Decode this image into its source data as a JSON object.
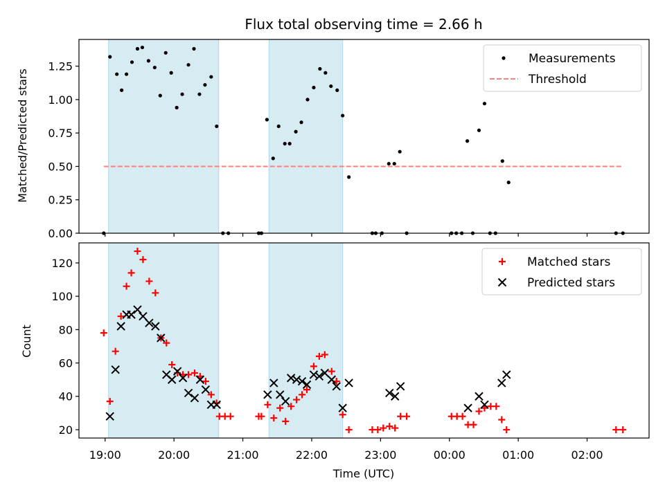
{
  "chart_data": [
    {
      "type": "scatter",
      "title": "Flux total observing time = 2.66 h",
      "ylabel": "Matched/Predicted stars",
      "xlabel": "",
      "ylim": [
        0,
        1.45
      ],
      "x_unit": "hours since 19:00 UTC",
      "y_ticks": [
        0.0,
        0.25,
        0.5,
        0.75,
        1.0,
        1.25
      ],
      "y_tick_labels": [
        "0.00",
        "0.25",
        "0.50",
        "0.75",
        "1.00",
        "1.25"
      ],
      "shaded_intervals": [
        [
          0.05,
          1.65
        ],
        [
          2.38,
          3.45
        ]
      ],
      "grid": false,
      "legend_position": "upper right",
      "legend": [
        "Measurements",
        "Threshold"
      ],
      "series": [
        {
          "name": "Measurements",
          "marker": "dot",
          "color": "#000000",
          "points": [
            [
              -0.02,
              0
            ],
            [
              0.07,
              1.32
            ],
            [
              0.17,
              1.19
            ],
            [
              0.24,
              1.07
            ],
            [
              0.31,
              1.19
            ],
            [
              0.39,
              1.28
            ],
            [
              0.47,
              1.38
            ],
            [
              0.54,
              1.39
            ],
            [
              0.63,
              1.29
            ],
            [
              0.72,
              1.24
            ],
            [
              0.8,
              1.03
            ],
            [
              0.88,
              1.35
            ],
            [
              0.96,
              1.2
            ],
            [
              1.04,
              0.94
            ],
            [
              1.12,
              1.04
            ],
            [
              1.21,
              1.26
            ],
            [
              1.29,
              1.38
            ],
            [
              1.37,
              1.04
            ],
            [
              1.45,
              1.11
            ],
            [
              1.54,
              1.17
            ],
            [
              1.62,
              0.8
            ],
            [
              1.71,
              0
            ],
            [
              1.79,
              0
            ],
            [
              2.23,
              0
            ],
            [
              2.27,
              0
            ],
            [
              2.35,
              0.85
            ],
            [
              2.44,
              0.56
            ],
            [
              2.52,
              0.8
            ],
            [
              2.61,
              0.67
            ],
            [
              2.68,
              0.67
            ],
            [
              2.77,
              0.76
            ],
            [
              2.85,
              0.83
            ],
            [
              2.94,
              1.0
            ],
            [
              3.03,
              1.09
            ],
            [
              3.12,
              1.23
            ],
            [
              3.2,
              1.2
            ],
            [
              3.28,
              1.1
            ],
            [
              3.37,
              1.07
            ],
            [
              3.45,
              0.88
            ],
            [
              3.54,
              0.42
            ],
            [
              3.88,
              0
            ],
            [
              3.93,
              0
            ],
            [
              4.02,
              0
            ],
            [
              4.12,
              0.52
            ],
            [
              4.2,
              0.52
            ],
            [
              4.28,
              0.61
            ],
            [
              4.38,
              0
            ],
            [
              5.03,
              0
            ],
            [
              5.1,
              0
            ],
            [
              5.18,
              0
            ],
            [
              5.26,
              0.69
            ],
            [
              5.34,
              0
            ],
            [
              5.43,
              0.77
            ],
            [
              5.51,
              0.97
            ],
            [
              5.59,
              0
            ],
            [
              5.67,
              0
            ],
            [
              5.77,
              0.54
            ],
            [
              5.86,
              0.38
            ],
            [
              7.42,
              0
            ],
            [
              7.52,
              0
            ]
          ]
        },
        {
          "name": "Threshold",
          "style": "dashed",
          "color": "#ff7f7f",
          "points": [
            [
              -0.02,
              0.5
            ],
            [
              7.52,
              0.5
            ]
          ]
        }
      ]
    },
    {
      "type": "scatter",
      "xlabel": "Time (UTC)",
      "ylabel": "Count",
      "ylim": [
        15,
        132
      ],
      "x_unit": "hours since 19:00 UTC",
      "y_ticks": [
        20,
        40,
        60,
        80,
        100,
        120
      ],
      "x_ticks": [
        0,
        1,
        2,
        3,
        4,
        5,
        6,
        7
      ],
      "x_tick_labels": [
        "19:00",
        "20:00",
        "21:00",
        "22:00",
        "23:00",
        "00:00",
        "01:00",
        "02:00"
      ],
      "shaded_intervals": [
        [
          0.05,
          1.65
        ],
        [
          2.38,
          3.45
        ]
      ],
      "grid": false,
      "legend_position": "upper right",
      "legend": [
        "Matched stars",
        "Predicted stars"
      ],
      "series": [
        {
          "name": "Matched stars",
          "marker": "plus",
          "color": "#ff0000",
          "points": [
            [
              -0.02,
              78
            ],
            [
              0.07,
              37
            ],
            [
              0.15,
              67
            ],
            [
              0.23,
              88
            ],
            [
              0.31,
              106
            ],
            [
              0.38,
              114
            ],
            [
              0.47,
              127
            ],
            [
              0.55,
              122
            ],
            [
              0.64,
              109
            ],
            [
              0.73,
              102
            ],
            [
              0.81,
              75
            ],
            [
              0.89,
              72
            ],
            [
              0.97,
              59
            ],
            [
              1.05,
              54
            ],
            [
              1.13,
              53
            ],
            [
              1.21,
              53
            ],
            [
              1.3,
              54
            ],
            [
              1.38,
              52
            ],
            [
              1.46,
              49
            ],
            [
              1.54,
              41
            ],
            [
              1.62,
              36
            ],
            [
              1.66,
              28
            ],
            [
              1.74,
              28
            ],
            [
              1.82,
              28
            ],
            [
              2.23,
              28
            ],
            [
              2.27,
              28
            ],
            [
              2.36,
              35
            ],
            [
              2.45,
              27
            ],
            [
              2.54,
              33
            ],
            [
              2.62,
              25
            ],
            [
              2.7,
              34
            ],
            [
              2.78,
              38
            ],
            [
              2.86,
              41
            ],
            [
              2.93,
              44
            ],
            [
              3.03,
              58
            ],
            [
              3.11,
              64
            ],
            [
              3.19,
              65
            ],
            [
              3.29,
              55
            ],
            [
              3.36,
              49
            ],
            [
              3.45,
              29
            ],
            [
              3.54,
              20
            ],
            [
              3.88,
              20
            ],
            [
              3.96,
              20
            ],
            [
              4.04,
              21
            ],
            [
              4.13,
              22
            ],
            [
              4.21,
              21
            ],
            [
              4.29,
              28
            ],
            [
              4.38,
              28
            ],
            [
              5.03,
              28
            ],
            [
              5.11,
              28
            ],
            [
              5.19,
              28
            ],
            [
              5.27,
              23
            ],
            [
              5.35,
              23
            ],
            [
              5.43,
              31
            ],
            [
              5.51,
              33
            ],
            [
              5.6,
              34
            ],
            [
              5.68,
              34
            ],
            [
              5.76,
              26
            ],
            [
              5.83,
              20
            ],
            [
              7.42,
              20
            ],
            [
              7.52,
              20
            ]
          ]
        },
        {
          "name": "Predicted stars",
          "marker": "x",
          "color": "#000000",
          "points": [
            [
              0.07,
              28
            ],
            [
              0.15,
              56
            ],
            [
              0.23,
              82
            ],
            [
              0.31,
              89
            ],
            [
              0.38,
              89
            ],
            [
              0.47,
              92
            ],
            [
              0.55,
              88
            ],
            [
              0.64,
              84
            ],
            [
              0.73,
              82
            ],
            [
              0.81,
              75
            ],
            [
              0.89,
              53
            ],
            [
              0.97,
              50
            ],
            [
              1.05,
              55
            ],
            [
              1.13,
              51
            ],
            [
              1.21,
              42
            ],
            [
              1.3,
              39
            ],
            [
              1.38,
              50
            ],
            [
              1.46,
              44
            ],
            [
              1.54,
              35
            ],
            [
              1.62,
              35
            ],
            [
              2.36,
              41
            ],
            [
              2.45,
              48
            ],
            [
              2.54,
              41
            ],
            [
              2.62,
              37
            ],
            [
              2.7,
              51
            ],
            [
              2.78,
              50
            ],
            [
              2.86,
              49
            ],
            [
              2.93,
              47
            ],
            [
              3.03,
              53
            ],
            [
              3.11,
              52
            ],
            [
              3.19,
              54
            ],
            [
              3.29,
              50
            ],
            [
              3.36,
              46
            ],
            [
              3.45,
              33
            ],
            [
              3.54,
              48
            ],
            [
              4.13,
              42
            ],
            [
              4.21,
              40
            ],
            [
              4.29,
              46
            ],
            [
              5.27,
              33
            ],
            [
              5.43,
              40
            ],
            [
              5.51,
              35
            ],
            [
              5.76,
              48
            ],
            [
              5.83,
              53
            ]
          ]
        }
      ]
    }
  ]
}
